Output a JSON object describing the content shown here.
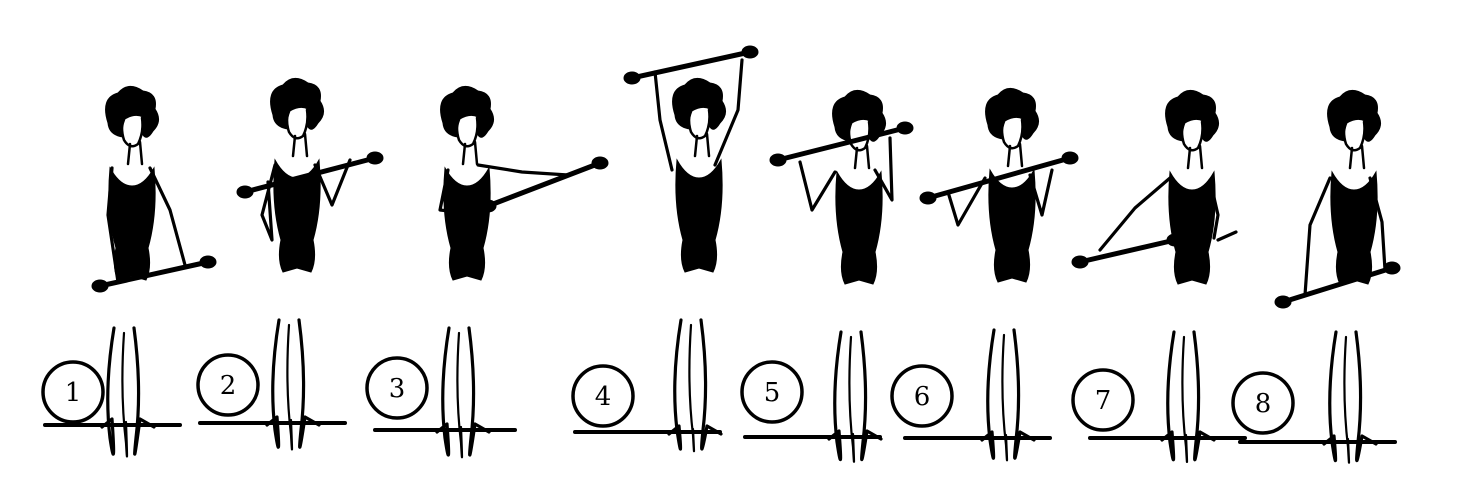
{
  "illustration": {
    "ink_color": "#000000",
    "background_color": "#ffffff",
    "figures": [
      {
        "step": "1",
        "pose": "stick-held-low"
      },
      {
        "step": "2",
        "pose": "stick-at-chest"
      },
      {
        "step": "3",
        "pose": "stick-extended-side"
      },
      {
        "step": "4",
        "pose": "stick-overhead"
      },
      {
        "step": "5",
        "pose": "stick-behind-neck"
      },
      {
        "step": "6",
        "pose": "stick-shoulder-level"
      },
      {
        "step": "7",
        "pose": "stick-extended-side"
      },
      {
        "step": "8",
        "pose": "stick-held-low"
      }
    ]
  }
}
